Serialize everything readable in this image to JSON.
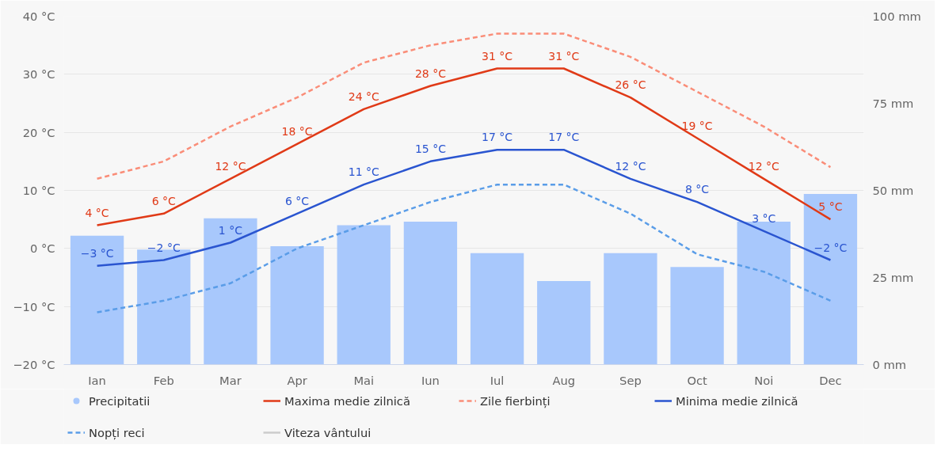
{
  "chart_data": {
    "type": "bar",
    "categories": [
      "Ian",
      "Feb",
      "Mar",
      "Apr",
      "Mai",
      "Iun",
      "Iul",
      "Aug",
      "Sep",
      "Oct",
      "Noi",
      "Dec"
    ],
    "series": [
      {
        "name": "Precipitatii",
        "axis": "y2",
        "color": "#a8c8fc",
        "values": [
          37,
          33,
          42,
          34,
          40,
          41,
          32,
          24,
          32,
          28,
          41,
          49
        ]
      },
      {
        "name": "Maxima medie zilnică",
        "type": "line",
        "color": "#e03a17",
        "line_style": "solid",
        "values": [
          4,
          6,
          12,
          18,
          24,
          28,
          31,
          31,
          26,
          19,
          12,
          5
        ],
        "value_labels": [
          "4 °C",
          "6 °C",
          "12 °C",
          "18 °C",
          "24 °C",
          "28 °C",
          "31 °C",
          "31 °C",
          "26 °C",
          "19 °C",
          "12 °C",
          "5 °C"
        ]
      },
      {
        "name": "Zile fierbinți",
        "type": "line",
        "color": "#fa8d78",
        "line_style": "dashed",
        "values": [
          12,
          15,
          21,
          26,
          32,
          35,
          37,
          37,
          33,
          27,
          21,
          14
        ]
      },
      {
        "name": "Minima medie zilnică",
        "type": "line",
        "color": "#2a55d0",
        "line_style": "solid",
        "values": [
          -3,
          -2,
          1,
          6,
          11,
          15,
          17,
          17,
          12,
          8,
          3,
          -2
        ],
        "value_labels": [
          "−3 °C",
          "−2 °C",
          "1 °C",
          "6 °C",
          "11 °C",
          "15 °C",
          "17 °C",
          "17 °C",
          "12 °C",
          "8 °C",
          "3 °C",
          "−2 °C"
        ]
      },
      {
        "name": "Nopți reci",
        "type": "line",
        "color": "#5a9de8",
        "line_style": "dashed",
        "values": [
          -11,
          -9,
          -6,
          0,
          4,
          8,
          11,
          11,
          6,
          -1,
          -4,
          -9
        ]
      },
      {
        "name": "Viteza vântului",
        "type": "line",
        "color": "#cccccc",
        "line_style": "solid",
        "values": [
          null,
          null,
          null,
          null,
          null,
          null,
          null,
          null,
          null,
          null,
          null,
          null
        ]
      }
    ],
    "ylim": [
      -20,
      40
    ],
    "yticks": [
      {
        "value": -20,
        "label": "−20 °C"
      },
      {
        "value": -10,
        "label": "−10 °C"
      },
      {
        "value": 0,
        "label": "0 °C"
      },
      {
        "value": 10,
        "label": "10 °C"
      },
      {
        "value": 20,
        "label": "20 °C"
      },
      {
        "value": 30,
        "label": "30 °C"
      },
      {
        "value": 40,
        "label": "40 °C"
      }
    ],
    "y2lim": [
      0,
      100
    ],
    "y2ticks": [
      {
        "value": 0,
        "label": "0 mm"
      },
      {
        "value": 25,
        "label": "25 mm"
      },
      {
        "value": 50,
        "label": "50 mm"
      },
      {
        "value": 75,
        "label": "75 mm"
      },
      {
        "value": 100,
        "label": "100 mm"
      }
    ],
    "grid": "y",
    "legend": "bottom"
  }
}
